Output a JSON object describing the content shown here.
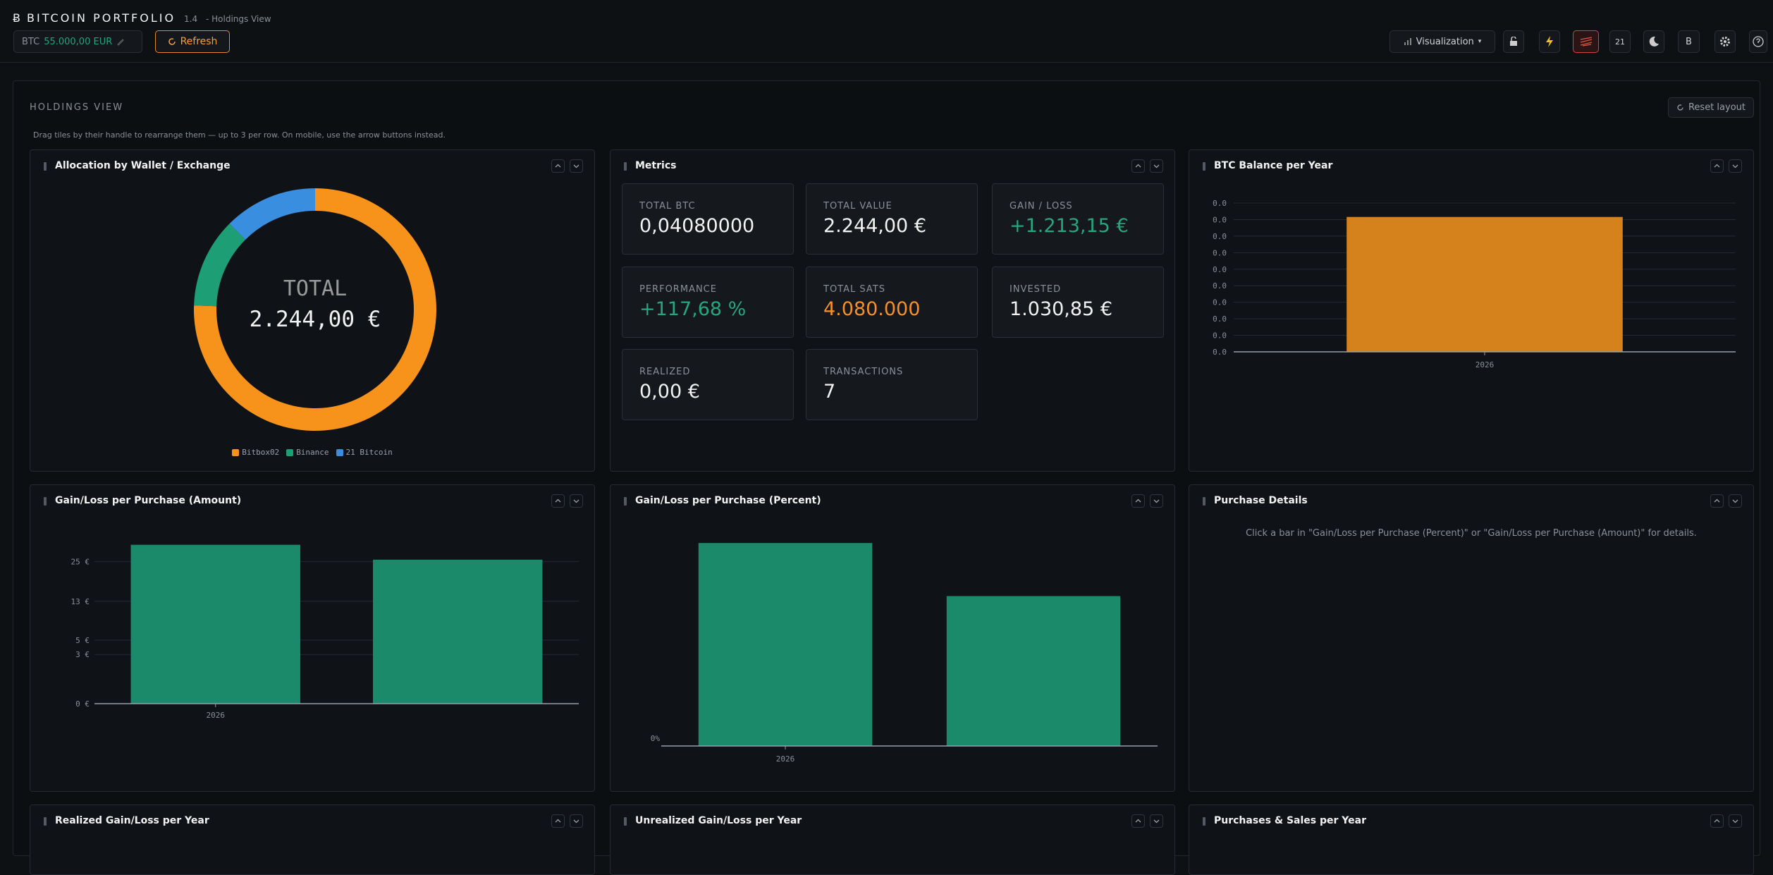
{
  "header": {
    "logo": "Ƀ",
    "title": "BITCOIN PORTFOLIO",
    "version": "1.4",
    "view": "- Holdings View",
    "price_label": "BTC",
    "price": "55.000,00 EUR",
    "refresh": "Refresh",
    "visualization": "Visualization",
    "btn_21": "21",
    "btn_b": "B"
  },
  "holdings": {
    "title": "HOLDINGS VIEW",
    "reset": "Reset layout",
    "hint": "Drag tiles by their handle to rearrange them — up to 3 per row. On mobile, use the arrow buttons instead."
  },
  "metrics": {
    "title": "Metrics",
    "cards": [
      {
        "label": "TOTAL BTC",
        "value": "0,04080000"
      },
      {
        "label": "TOTAL VALUE",
        "value": "2.244,00 €"
      },
      {
        "label": "GAIN / LOSS",
        "value": "+1.213,15 €",
        "color": "#27a67d"
      },
      {
        "label": "PERFORMANCE",
        "value": "+117,68 %",
        "color": "#27a67d"
      },
      {
        "label": "TOTAL SATS",
        "value": "4.080.000",
        "color": "#f5902a"
      },
      {
        "label": "INVESTED",
        "value": "1.030,85 €"
      },
      {
        "label": "REALIZED",
        "value": "0,00 €"
      },
      {
        "label": "TRANSACTIONS",
        "value": "7"
      }
    ]
  },
  "purchase_details": {
    "title": "Purchase Details",
    "text": "Click a bar in \"Gain/Loss per Purchase (Percent)\" or \"Gain/Loss per Purchase (Amount)\" for details."
  },
  "lower_tiles": [
    "Realized Gain/Loss per Year",
    "Unrealized Gain/Loss per Year",
    "Purchases & Sales per Year"
  ],
  "chart_data": [
    {
      "type": "donut",
      "title": "Allocation by Wallet / Exchange",
      "center_label": "TOTAL",
      "center_value": "2.244,00 €",
      "categories": [
        "Bitbox02",
        "Binance",
        "21 Bitcoin"
      ],
      "values": [
        1695,
        269,
        280
      ],
      "colors": [
        "#f7931a",
        "#1e9e75",
        "#3a8ee0"
      ]
    },
    {
      "type": "bar",
      "title": "BTC Balance per Year",
      "categories": [
        "2026"
      ],
      "values": [
        0.0408
      ],
      "color": "#d6821c",
      "ylim": [
        0,
        0.045
      ],
      "grid": true,
      "yticks": [
        {
          "value": 0,
          "label": "0.0"
        },
        {
          "value": 0.005,
          "label": "0.0"
        },
        {
          "value": 0.01,
          "label": "0.0"
        },
        {
          "value": 0.015,
          "label": "0.0"
        },
        {
          "value": 0.02,
          "label": "0.0"
        },
        {
          "value": 0.025,
          "label": "0.0"
        },
        {
          "value": 0.03,
          "label": "0.0"
        },
        {
          "value": 0.035,
          "label": "0.0"
        },
        {
          "value": 0.04,
          "label": "0.0"
        },
        {
          "value": 0.045,
          "label": "0.0"
        }
      ]
    },
    {
      "type": "bar",
      "title": "Gain/Loss per Purchase (Amount)",
      "categories": [
        "2026",
        null
      ],
      "values": [
        31.3,
        25.7
      ],
      "color": "#1b8a6b",
      "y_scale": "sqrt",
      "ylim": [
        0,
        37
      ],
      "grid": true,
      "yticks": [
        {
          "value": 0,
          "label": "0 €"
        },
        {
          "value": 3,
          "label": "3 €"
        },
        {
          "value": 5,
          "label": "5 €"
        },
        {
          "value": 13,
          "label": "13 €"
        },
        {
          "value": 25,
          "label": "25 €"
        }
      ]
    },
    {
      "type": "bar",
      "title": "Gain/Loss per Purchase (Percent)",
      "categories": [
        "2026",
        null
      ],
      "values": [
        130,
        96
      ],
      "color": "#1b8a6b",
      "ylim": [
        0,
        140
      ],
      "grid": false,
      "yticks": [
        {
          "value": 0,
          "label": "0%"
        }
      ]
    }
  ]
}
